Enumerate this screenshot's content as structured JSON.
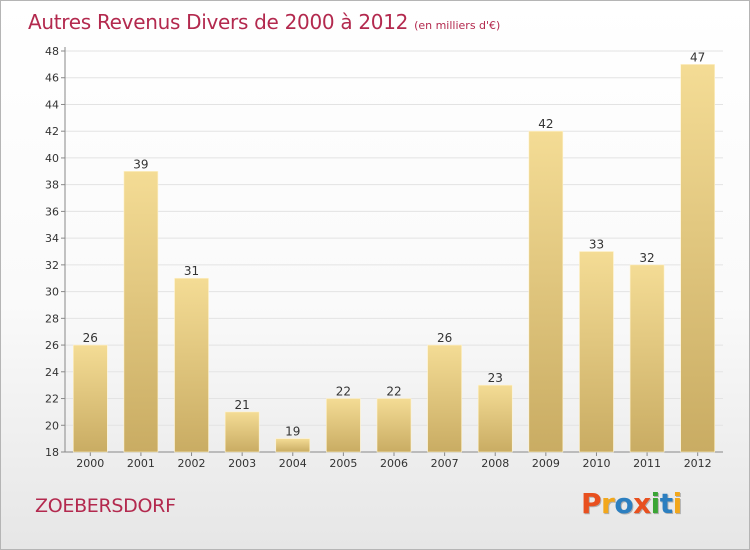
{
  "header": {
    "title": "Autres Revenus Divers de 2000 à 2012",
    "unit": "(en milliers d'€)"
  },
  "footer": {
    "place": "ZOEBERSDORF",
    "logo": [
      "P",
      "r",
      "o",
      "x",
      "i",
      "t",
      "i"
    ]
  },
  "colors": {
    "title": "#b3294e",
    "bar_light": "#f4dc95",
    "bar_dark": "#c9ac63",
    "logo": [
      "#e8501f",
      "#f2a71b",
      "#2c7fc0",
      "#e8501f",
      "#3aa535",
      "#2c7fc0",
      "#f2a71b"
    ]
  },
  "chart_data": {
    "type": "bar",
    "categories": [
      "2000",
      "2001",
      "2002",
      "2003",
      "2004",
      "2005",
      "2006",
      "2007",
      "2008",
      "2009",
      "2010",
      "2011",
      "2012"
    ],
    "values": [
      26,
      39,
      31,
      21,
      19,
      22,
      22,
      26,
      23,
      42,
      33,
      32,
      47
    ],
    "ylim": [
      18,
      48
    ],
    "yticks": [
      18,
      20,
      22,
      24,
      26,
      28,
      30,
      32,
      34,
      36,
      38,
      40,
      42,
      44,
      46,
      48
    ],
    "grid": true,
    "legend": "none"
  }
}
